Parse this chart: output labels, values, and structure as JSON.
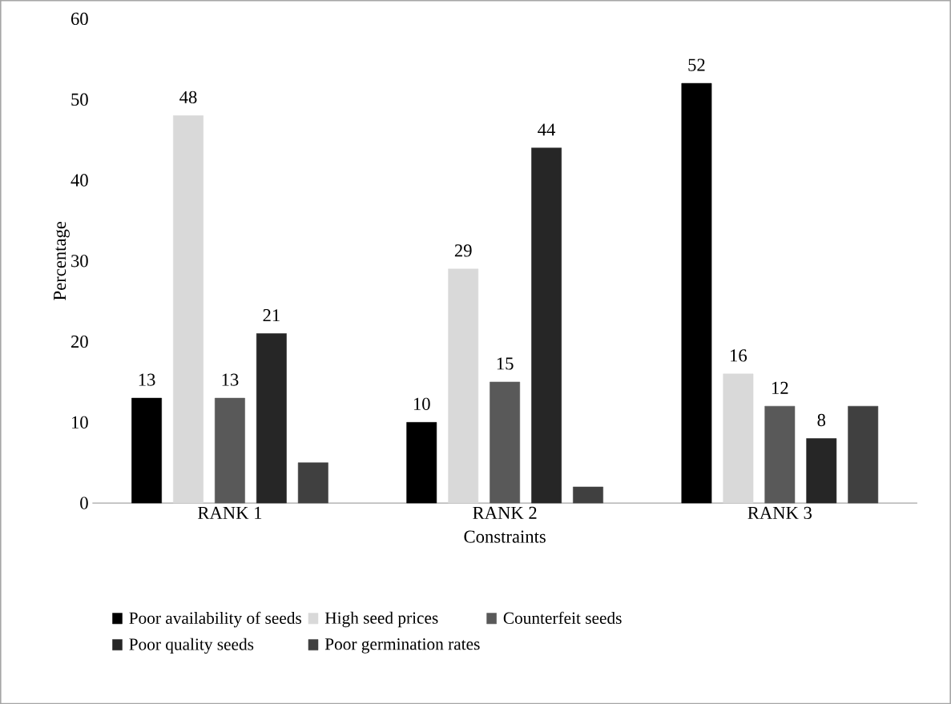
{
  "chart_data": {
    "type": "bar",
    "xlabel": "Constraints",
    "ylabel": "Percentage",
    "categories": [
      "RANK 1",
      "RANK 2",
      "RANK 3"
    ],
    "series": [
      {
        "name": "Poor availability of seeds",
        "color": "#000000",
        "values": [
          13,
          10,
          52
        ],
        "value_labels": [
          "13",
          "10",
          "52"
        ]
      },
      {
        "name": "High seed prices",
        "color": "#d9d9d9",
        "values": [
          48,
          29,
          16
        ],
        "value_labels": [
          "48",
          "29",
          "16"
        ]
      },
      {
        "name": "Counterfeit seeds",
        "color": "#595959",
        "values": [
          13,
          15,
          12
        ],
        "value_labels": [
          "13",
          "15",
          "12"
        ]
      },
      {
        "name": "Poor quality seeds",
        "color": "#262626",
        "values": [
          21,
          44,
          8
        ],
        "value_labels": [
          "21",
          "44",
          "8"
        ]
      },
      {
        "name": "Poor germination rates",
        "color": "#404040",
        "values": [
          5,
          2,
          12
        ],
        "value_labels": [
          null,
          null,
          null
        ]
      }
    ],
    "ylim": [
      0,
      60
    ],
    "yticks": [
      0,
      10,
      20,
      30,
      40,
      50,
      60
    ],
    "grid": false,
    "legend": "bottom"
  }
}
